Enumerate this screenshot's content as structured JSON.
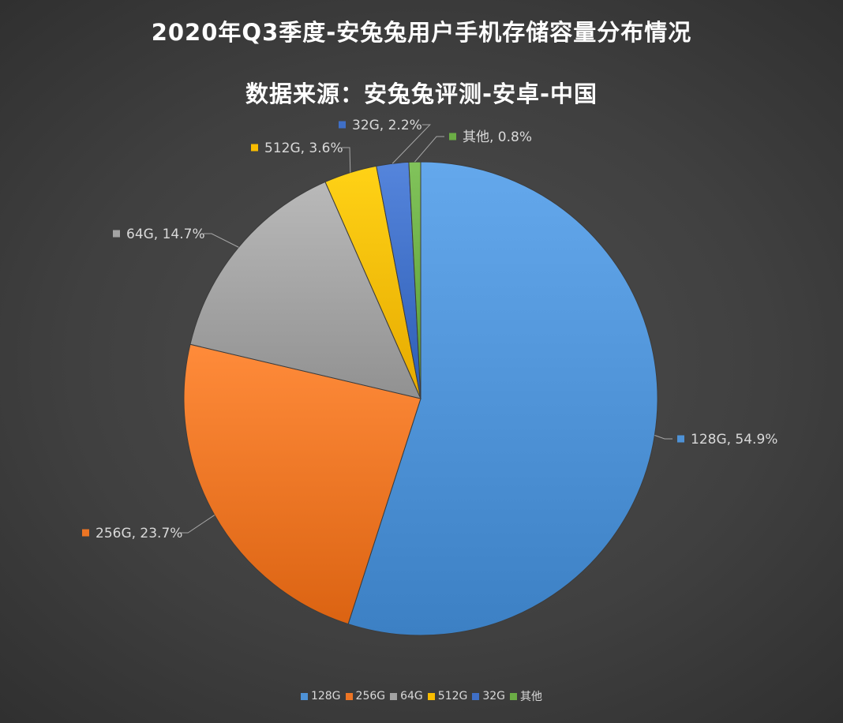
{
  "title_line1": "2020年Q3季度-安兔兔用户手机存储容量分布情况",
  "title_line2": "数据来源：安兔兔评测-安卓-中国",
  "chart_data": {
    "type": "pie",
    "title": "2020年Q3季度-安兔兔用户手机存储容量分布情况",
    "subtitle": "数据来源：安兔兔评测-安卓-中国",
    "legend_position": "bottom",
    "slices": [
      {
        "label": "128G",
        "value": 54.9,
        "display": "128G, 54.9%",
        "color": "#4e92d6"
      },
      {
        "label": "256G",
        "value": 23.7,
        "display": "256G, 23.7%",
        "color": "#ed7524"
      },
      {
        "label": "64G",
        "value": 14.7,
        "display": "64G, 14.7%",
        "color": "#a3a3a3"
      },
      {
        "label": "512G",
        "value": 3.6,
        "display": "512G, 3.6%",
        "color": "#f8bc00"
      },
      {
        "label": "32G",
        "value": 2.2,
        "display": "32G, 2.2%",
        "color": "#3f6fc6"
      },
      {
        "label": "其他",
        "value": 0.8,
        "display": "其他, 0.8%",
        "color": "#6bad45"
      }
    ]
  }
}
